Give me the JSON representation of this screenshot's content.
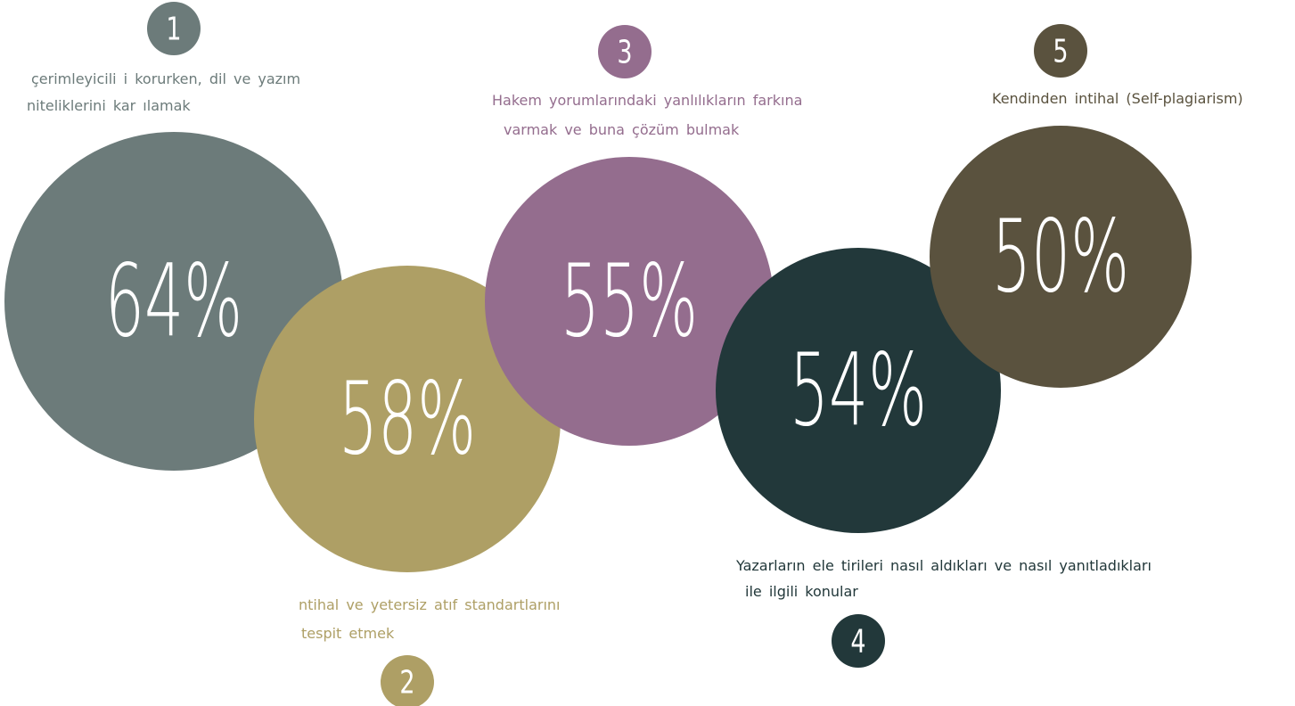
{
  "items": [
    {
      "number": "1",
      "lines": [
        "çerimleyicili i korurken, dil ve yazım",
        "niteliklerini kar ılamak"
      ],
      "value": "64%"
    },
    {
      "number": "2",
      "lines": [
        "ntihal ve yetersiz atıf standartlarını",
        "tespit etmek"
      ],
      "value": "58%"
    },
    {
      "number": "3",
      "lines": [
        "Hakem yorumlarındaki yanlılıkların farkına",
        "varmak ve buna çözüm bulmak"
      ],
      "value": "55%"
    },
    {
      "number": "4",
      "lines": [
        "Yazarların ele tirileri nasıl aldıkları ve nasıl yanıtladıkları",
        "ile ilgili konular"
      ],
      "value": "54%"
    },
    {
      "number": "5",
      "lines": [
        "Kendinden intihal (Self-plagiarism)"
      ],
      "value": "50%"
    }
  ]
}
